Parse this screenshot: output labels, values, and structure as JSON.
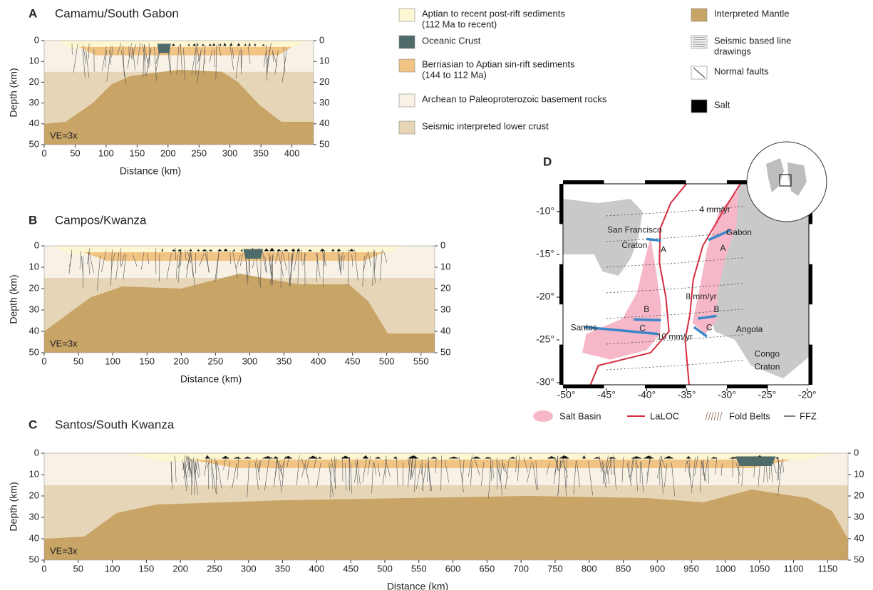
{
  "panels": [
    {
      "letter": "A",
      "title": "Camamu/South Gabon",
      "y_label": "Depth (km)",
      "x_label": "Distance (km)",
      "note": "VE=3x",
      "xlim": [
        0,
        435
      ],
      "xticks": [
        0,
        50,
        100,
        150,
        200,
        250,
        300,
        350,
        400
      ],
      "ylim": [
        0,
        50
      ],
      "yticks": [
        0,
        10,
        20,
        30,
        40,
        50
      ]
    },
    {
      "letter": "B",
      "title": "Campos/Kwanza",
      "y_label": "Depth (km)",
      "x_label": "Distance (km)",
      "note": "VE=3x",
      "xlim": [
        0,
        570
      ],
      "xticks": [
        0,
        50,
        100,
        150,
        200,
        250,
        300,
        350,
        400,
        450,
        500,
        550
      ],
      "ylim": [
        0,
        50
      ],
      "yticks": [
        0,
        10,
        20,
        30,
        40,
        50
      ]
    },
    {
      "letter": "C",
      "title": "Santos/South Kwanza",
      "y_label": "Depth (km)",
      "x_label": "Distance (km)",
      "note": "VE=3x",
      "xlim": [
        0,
        1180
      ],
      "xticks": [
        0,
        50,
        100,
        150,
        200,
        250,
        300,
        350,
        400,
        450,
        500,
        550,
        600,
        650,
        700,
        750,
        800,
        850,
        900,
        950,
        1000,
        1050,
        1100,
        1150
      ],
      "ylim": [
        0,
        50
      ],
      "yticks": [
        0,
        10,
        20,
        30,
        40,
        50
      ]
    }
  ],
  "legend": [
    {
      "lines": [
        "Aptian to recent post-rift sediments",
        "(112 Ma to recent)"
      ],
      "color": "#fdf6d2"
    },
    {
      "lines": [
        "Oceanic Crust"
      ],
      "color": "#4f6b69"
    },
    {
      "lines": [
        "Berriasian to Aptian sin-rift sediments",
        "(144 to 112 Ma)"
      ],
      "color": "#f2c484"
    },
    {
      "lines": [
        "Archean to Paleoproterozoic basement rocks"
      ],
      "color": "#f7f1e6"
    },
    {
      "lines": [
        "Seismic interpreted  lower crust"
      ],
      "color": "#e6d6b7"
    },
    {
      "lines": [
        "Interpreted Mantle"
      ],
      "color": "#c8a466"
    },
    {
      "lines": [
        "Seismic based line",
        "drawings"
      ],
      "color": "#f2f2f2"
    },
    {
      "lines": [
        "Normal faults"
      ],
      "color": "#ffffff"
    },
    {
      "lines": [
        "Salt"
      ],
      "color": "#000000"
    }
  ],
  "map": {
    "letter": "D",
    "xlim": [
      -50.4,
      -19.8
    ],
    "ylim": [
      -30.25,
      -6.75
    ],
    "xticks": [
      {
        "value": -50,
        "label": "-50°"
      },
      {
        "value": -45,
        "label": "-45°"
      },
      {
        "value": -40,
        "label": "-40°"
      },
      {
        "value": -35,
        "label": "-35°"
      },
      {
        "value": -30,
        "label": "-30°"
      },
      {
        "value": -25,
        "label": "-25°"
      },
      {
        "value": -20,
        "label": "-20°"
      }
    ],
    "yticks": [
      {
        "value": -10,
        "label": "-10°"
      },
      {
        "value": -15,
        "label": "-15°"
      },
      {
        "value": -20,
        "label": "-20°"
      },
      {
        "value": -25,
        "label": "-25°"
      },
      {
        "value": -30,
        "label": "-30°"
      }
    ],
    "labels": [
      "4 mm/yr",
      "San Francisco",
      "Craton",
      "Gabon",
      "A",
      "A",
      "8 mm/yr",
      "B",
      "B",
      "Santos",
      "C",
      "C",
      "10 mm/yr",
      "Angola",
      "Congo",
      "Craton"
    ],
    "legend": [
      "Salt Basin",
      "LaLOC",
      "Fold Belts",
      "FFZ"
    ]
  }
}
